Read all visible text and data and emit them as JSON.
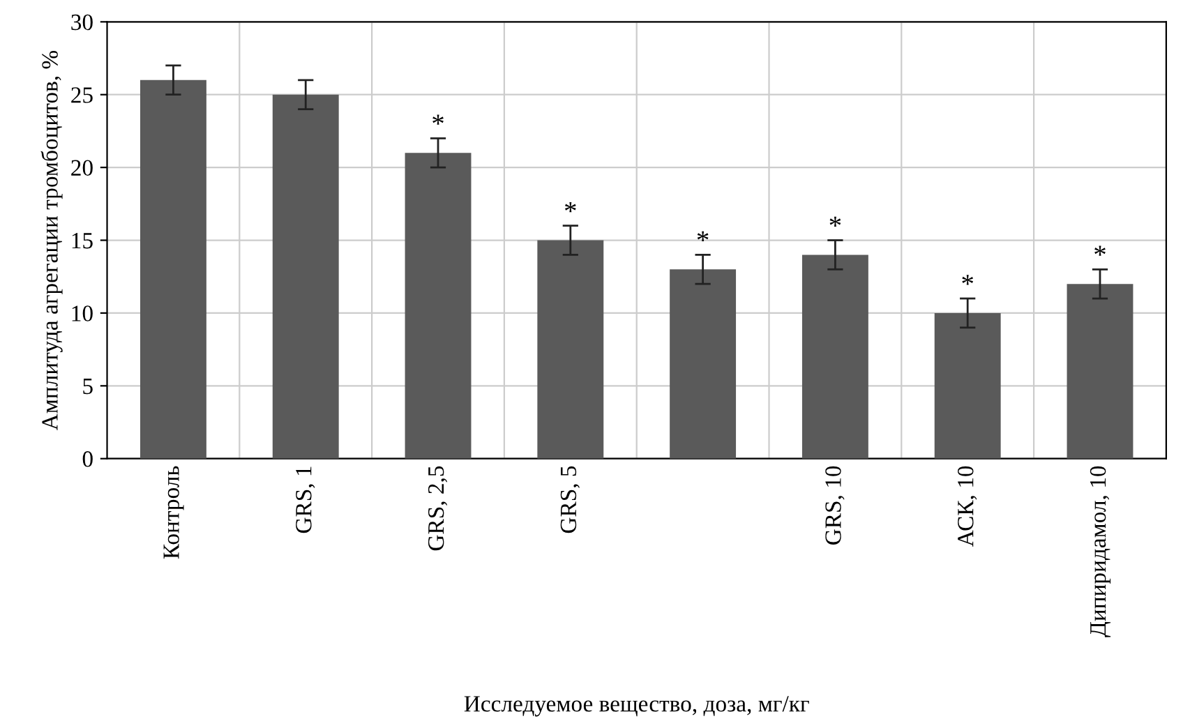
{
  "chart_data": {
    "type": "bar",
    "xlabel": "Исследуемое вещество, доза, мг/кг",
    "ylabel": "Амплитуда агрегации тромбоцитов, %",
    "categories": [
      "Контроль",
      "GRS, 1",
      "GRS, 2,5",
      "GRS, 5",
      null,
      "GRS, 10",
      "АСК, 10",
      "Дипиридамол, 10"
    ],
    "values": [
      26,
      25,
      21,
      15,
      13,
      14,
      10,
      12
    ],
    "color": "#5a5a5a",
    "errors": [
      1,
      1,
      1,
      1,
      1,
      1,
      1,
      1
    ],
    "ylim": [
      0,
      30
    ],
    "yticks": [
      0,
      5,
      10,
      15,
      20,
      25,
      30
    ],
    "grid": true,
    "annotations": [
      {
        "text": "*",
        "x": "GRS, 2,5",
        "y": 22
      },
      {
        "text": "*",
        "x": "GRS, 5",
        "y": 16
      },
      {
        "text": "*",
        "y": 14
      },
      {
        "text": "*",
        "x": "GRS, 10",
        "y": 15
      },
      {
        "text": "*",
        "x": "АСК, 10",
        "y": 11
      },
      {
        "text": "*",
        "x": "Дипиридамол, 10",
        "y": 13
      }
    ]
  }
}
